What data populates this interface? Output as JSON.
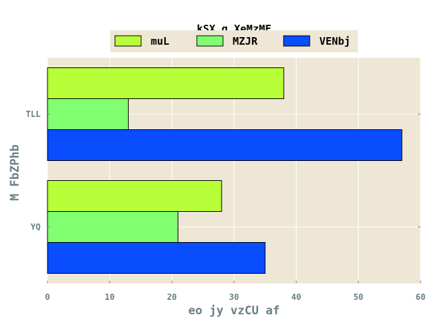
{
  "chart_data": {
    "type": "bar",
    "orientation": "horizontal",
    "title": "kSX g  XeMzMF",
    "xlabel": "eo jy vzCU af",
    "ylabel": "M FbZPhb",
    "categories": [
      "YQ",
      "TLL"
    ],
    "series": [
      {
        "name": "muL",
        "color": "#b8ff3a",
        "values": [
          28,
          38
        ]
      },
      {
        "name": "MZJR",
        "color": "#80ff70",
        "values": [
          21,
          13
        ]
      },
      {
        "name": "VENbj",
        "color": "#0a4dff",
        "values": [
          35,
          57
        ]
      }
    ],
    "xlim": [
      0,
      60
    ],
    "xticks": [
      0,
      10,
      20,
      30,
      40,
      50,
      60
    ],
    "grid": true,
    "legend_position": "top-center",
    "plot_background": "#efe7d6"
  }
}
